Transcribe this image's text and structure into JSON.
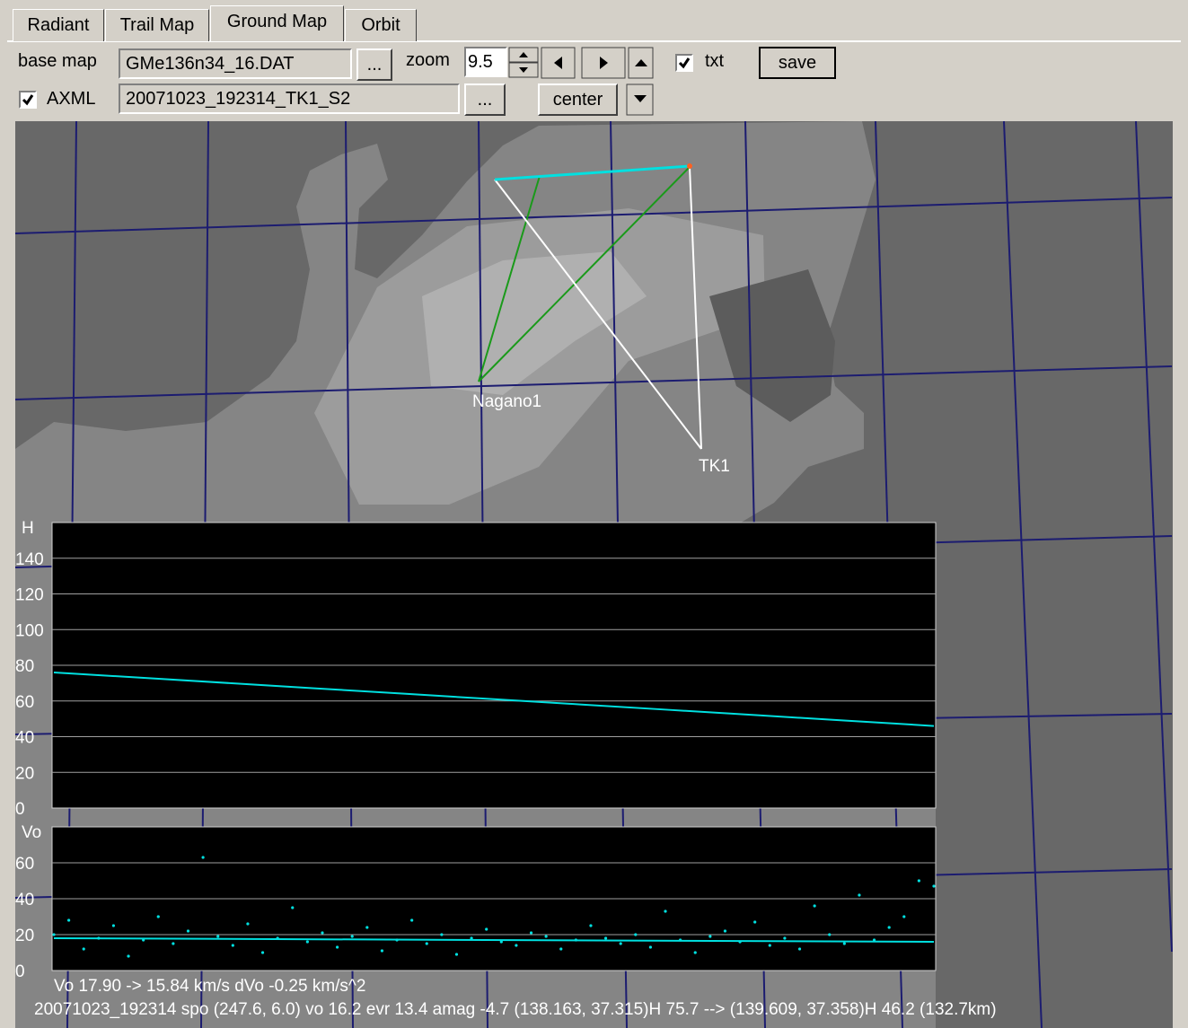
{
  "tabs": [
    "Radiant",
    "Trail Map",
    "Ground Map",
    "Orbit"
  ],
  "toolbar": {
    "base_map_label": "base map",
    "base_map_file": "GMe136n34_16.DAT",
    "browse_base": "...",
    "zoom_label": "zoom",
    "zoom_value": "9.5",
    "txt_label": "txt",
    "save": "save",
    "axml_label": "AXML",
    "axml_file": "20071023_192314_TK1_S2",
    "browse_axml": "...",
    "center": "center"
  },
  "map": {
    "stations": [
      "Nagano1",
      "TK1"
    ]
  },
  "height_chart": {
    "type": "line",
    "y_label": "H",
    "ylim": [
      0,
      160
    ],
    "yticks": [
      0,
      20,
      40,
      60,
      80,
      100,
      120,
      140
    ],
    "grid": true,
    "color": "#00e0e0",
    "values": [
      76,
      73,
      70,
      67,
      64,
      61,
      58,
      55,
      52,
      49,
      46
    ]
  },
  "velocity_chart": {
    "type": "scatter",
    "y_label": "Vo",
    "ylim": [
      0,
      80
    ],
    "yticks": [
      0,
      20,
      40,
      60
    ],
    "grid": true,
    "color": "#00e0e0",
    "values": [
      20,
      28,
      12,
      18,
      25,
      8,
      17,
      30,
      15,
      22,
      63,
      19,
      14,
      26,
      10,
      18,
      35,
      16,
      21,
      13,
      19,
      24,
      11,
      17,
      28,
      15,
      20,
      9,
      18,
      23,
      16,
      14,
      21,
      19,
      12,
      17,
      25,
      18,
      15,
      20,
      13,
      33,
      17,
      10,
      19,
      22,
      16,
      27,
      14,
      18,
      12,
      36,
      20,
      15,
      42,
      17,
      24,
      30,
      50,
      47
    ],
    "fit_values": [
      18,
      16
    ]
  },
  "status": {
    "line1": "Vo 17.90 -> 15.84 km/s   dVo -0.25 km/s^2",
    "line2": "20071023_192314  spo (247.6, 6.0) vo 16.2 evr 13.4 amag -4.7  (138.163, 37.315)H 75.7 --> (139.609, 37.358)H 46.2 (132.7km)"
  }
}
